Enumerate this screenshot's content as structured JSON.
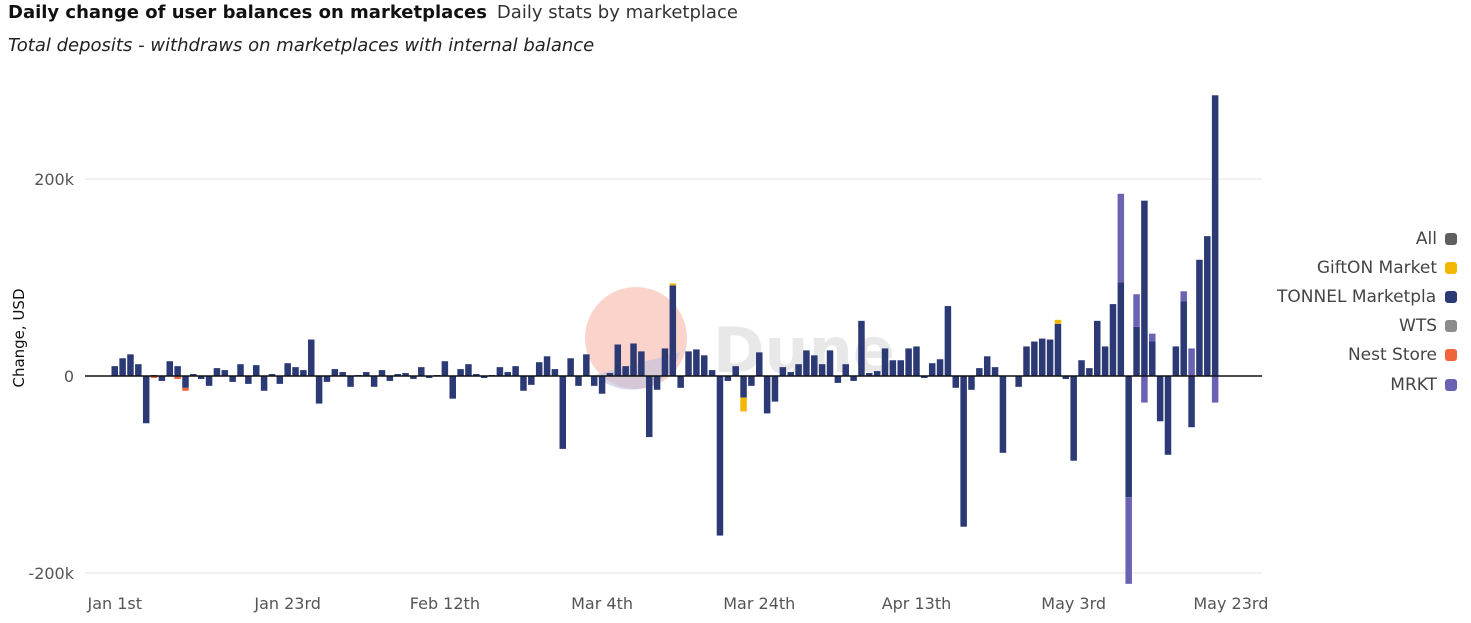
{
  "header": {
    "title": "Daily change of user balances on marketplaces",
    "subtitle": "Daily stats by marketplace",
    "description": "Total deposits - withdraws on marketplaces with internal balance"
  },
  "watermark": "Dune",
  "legend": [
    {
      "label": "All",
      "color": "#5f5f5f"
    },
    {
      "label": "GiftON Market",
      "color": "#f2b705"
    },
    {
      "label": "TONNEL Marketplace",
      "color": "#2b3a75"
    },
    {
      "label": "WTS",
      "color": "#8c8c8c"
    },
    {
      "label": "Nest Store",
      "color": "#f0643c"
    },
    {
      "label": "MRKT",
      "color": "#6a63b3"
    }
  ],
  "chart_data": {
    "type": "bar",
    "stacked": true,
    "title": "Daily change of user balances on marketplaces",
    "ylabel": "Change, USD",
    "ylim": [
      -210000,
      290000
    ],
    "yticks": [
      {
        "value": 200000,
        "label": "200k"
      },
      {
        "value": 0,
        "label": "0"
      },
      {
        "value": -200000,
        "label": "-200k"
      }
    ],
    "x_start": "2025-01-01",
    "x_ticks": [
      "Jan 1st",
      "Jan 23rd",
      "Feb 12th",
      "Mar 4th",
      "Mar 24th",
      "Apr 13th",
      "May 3rd",
      "May 23rd"
    ],
    "x_tick_dates": [
      "2025-01-01",
      "2025-01-23",
      "2025-02-12",
      "2025-03-04",
      "2025-03-24",
      "2025-04-13",
      "2025-05-03",
      "2025-05-23"
    ],
    "grid": true,
    "legend_position": "right",
    "series": [
      {
        "name": "TONNEL Marketplace",
        "color": "#2b3a75",
        "values": [
          10000,
          18000,
          22000,
          12000,
          -48000,
          1000,
          -5000,
          15000,
          10000,
          -12000,
          2000,
          -3000,
          -10000,
          8000,
          6000,
          -6000,
          12000,
          -8000,
          11000,
          -15000,
          2000,
          -8000,
          13000,
          9000,
          6000,
          37000,
          -28000,
          -6000,
          7000,
          4000,
          -11000,
          1000,
          4000,
          -11000,
          6000,
          -5000,
          2000,
          3000,
          -3000,
          9000,
          -2000,
          1000,
          15000,
          -23000,
          7000,
          12000,
          2000,
          -2000,
          1000,
          9000,
          4000,
          10000,
          -15000,
          -9000,
          14000,
          20000,
          7000,
          -74000,
          18000,
          -10000,
          22000,
          -10000,
          -18000,
          3000,
          32000,
          10000,
          33000,
          25000,
          -62000,
          -14000,
          28000,
          92000,
          -12000,
          25000,
          27000,
          21000,
          6000,
          -162000,
          -5000,
          10000,
          -22000,
          -10000,
          24000,
          -38000,
          -26000,
          9000,
          4000,
          12000,
          26000,
          21000,
          12000,
          26000,
          -7000,
          12000,
          -5000,
          56000,
          3000,
          5000,
          28000,
          16000,
          16000,
          28000,
          30000,
          -2000,
          13000,
          17000,
          71000,
          -12000,
          -153000,
          -14000,
          8000,
          20000,
          9000,
          -78000,
          0,
          -11000,
          30000,
          35000,
          38000,
          37000,
          53000,
          -3000,
          -86000,
          16000,
          8000,
          56000,
          30000,
          73000,
          95000,
          -123000,
          50000,
          178000,
          35000,
          -46000,
          -80000,
          30000,
          76000,
          -52000,
          118000,
          142000,
          285000
        ]
      },
      {
        "name": "MRKT",
        "color": "#6a63b3",
        "values": [
          0,
          0,
          0,
          0,
          0,
          0,
          0,
          0,
          0,
          0,
          0,
          0,
          0,
          0,
          0,
          0,
          0,
          0,
          0,
          0,
          0,
          0,
          0,
          0,
          0,
          0,
          0,
          0,
          0,
          0,
          0,
          0,
          0,
          0,
          0,
          0,
          0,
          0,
          0,
          0,
          0,
          0,
          0,
          0,
          0,
          0,
          0,
          0,
          0,
          0,
          0,
          0,
          0,
          0,
          0,
          0,
          0,
          0,
          0,
          0,
          0,
          0,
          0,
          0,
          0,
          0,
          0,
          0,
          0,
          0,
          0,
          0,
          0,
          0,
          0,
          0,
          0,
          0,
          0,
          0,
          0,
          0,
          0,
          0,
          0,
          0,
          0,
          0,
          0,
          0,
          0,
          0,
          0,
          0,
          0,
          0,
          0,
          0,
          0,
          0,
          0,
          0,
          0,
          0,
          0,
          0,
          0,
          0,
          0,
          0,
          0,
          0,
          0,
          0,
          0,
          0,
          0,
          0,
          0,
          0,
          0,
          0,
          0,
          0,
          0,
          0,
          0,
          0,
          90000,
          -88000,
          33000,
          -27000,
          8000,
          0,
          0,
          0,
          10000,
          28000,
          0,
          0,
          -27000
        ]
      },
      {
        "name": "GiftON Market",
        "color": "#f2b705",
        "values": [
          0,
          0,
          0,
          0,
          0,
          0,
          0,
          0,
          0,
          0,
          0,
          0,
          0,
          0,
          0,
          0,
          0,
          0,
          0,
          0,
          0,
          0,
          0,
          0,
          0,
          0,
          0,
          0,
          0,
          0,
          0,
          0,
          0,
          0,
          0,
          0,
          0,
          0,
          0,
          0,
          0,
          0,
          0,
          0,
          0,
          0,
          0,
          0,
          0,
          0,
          0,
          0,
          0,
          0,
          0,
          0,
          0,
          0,
          0,
          0,
          0,
          0,
          0,
          0,
          0,
          0,
          0,
          0,
          0,
          0,
          0,
          2000,
          0,
          0,
          0,
          0,
          0,
          0,
          0,
          0,
          -14000,
          0,
          0,
          0,
          0,
          0,
          0,
          0,
          0,
          0,
          0,
          0,
          0,
          0,
          0,
          0,
          0,
          0,
          0,
          0,
          0,
          0,
          0,
          0,
          0,
          0,
          0,
          0,
          0,
          0,
          0,
          0,
          0,
          0,
          0,
          0,
          0,
          0,
          0,
          0,
          4000,
          0,
          0,
          0,
          0,
          0,
          0,
          0,
          0,
          0,
          0,
          0,
          0,
          0,
          0,
          0,
          0,
          0,
          0,
          0,
          0
        ]
      },
      {
        "name": "Nest Store",
        "color": "#f0643c",
        "values": [
          0,
          0,
          0,
          0,
          0,
          -2000,
          0,
          0,
          -3000,
          -3000,
          0,
          0,
          0,
          0,
          0,
          0,
          0,
          0,
          0,
          0,
          0,
          0,
          0,
          0,
          0,
          0,
          0,
          0,
          0,
          0,
          0,
          0,
          0,
          0,
          0,
          0,
          0,
          0,
          0,
          0,
          0,
          0,
          0,
          0,
          0,
          0,
          0,
          0,
          0,
          0,
          0,
          0,
          0,
          0,
          0,
          0,
          0,
          0,
          0,
          0,
          0,
          0,
          0,
          0,
          0,
          0,
          0,
          0,
          0,
          0,
          0,
          0,
          0,
          0,
          0,
          0,
          0,
          0,
          0,
          0,
          0,
          0,
          0,
          0,
          0,
          0,
          0,
          0,
          0,
          0,
          0,
          0,
          0,
          0,
          0,
          0,
          0,
          0,
          0,
          0,
          0,
          0,
          0,
          0,
          0,
          0,
          0,
          0,
          0,
          0,
          0,
          0,
          0,
          0,
          0,
          0,
          0,
          0,
          0,
          0,
          0,
          0,
          0,
          0,
          0,
          0,
          0,
          0,
          0,
          0,
          0,
          0,
          0,
          0,
          0,
          0,
          0,
          0,
          0,
          0,
          0
        ]
      }
    ]
  }
}
